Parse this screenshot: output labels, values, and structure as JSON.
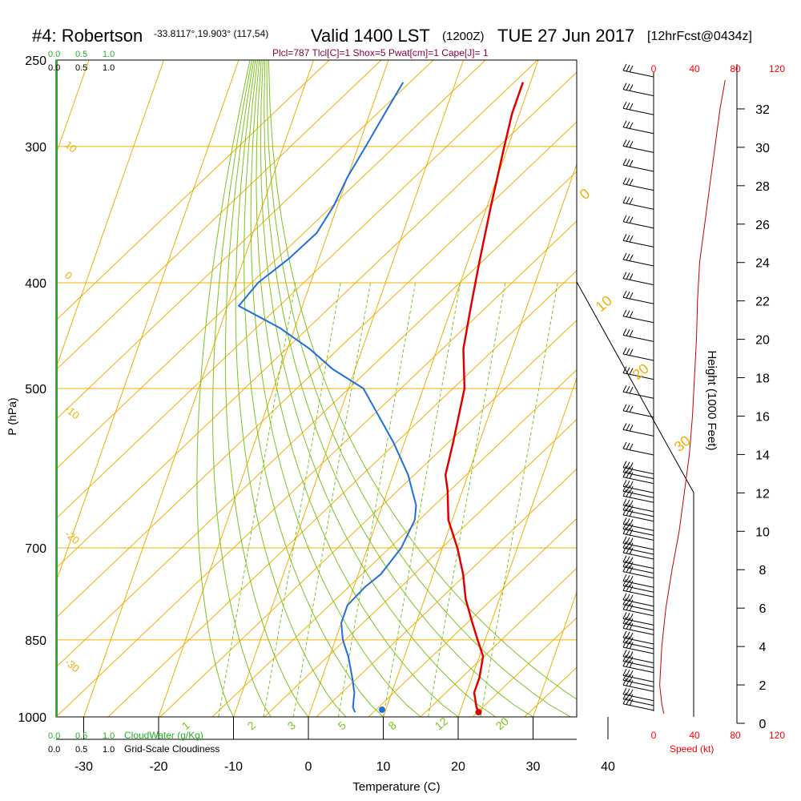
{
  "header": {
    "station": "#4: Robertson",
    "coords": "-33.8117°,19.903° (117,54)",
    "valid": "Valid 1400 LST",
    "utc": "(1200Z)",
    "date": "TUE 27 Jun 2017",
    "forecast": "[12hrFcst@0434z]",
    "params": "Plcl=787 Tlcl[C]=1 Shox=5 Pwat[cm]=1 Cape[J]= 1"
  },
  "cloud_labels": {
    "top_green": [
      "0.0",
      "0.5",
      "1.0"
    ],
    "top_black": [
      "0.0",
      "0.5",
      "1.0"
    ],
    "bottom_green": [
      "0.0",
      "0.5",
      "1.0"
    ],
    "bottom_green_title": "CloudWater (g/Kg)",
    "bottom_black": [
      "0.0",
      "0.5",
      "1.0"
    ],
    "bottom_black_title": "Grid-Scale Cloudiness"
  },
  "speed_axis": {
    "top_ticks": [
      "0",
      "40",
      "80",
      "120"
    ],
    "bottom_ticks": [
      "0",
      "40",
      "80",
      "120"
    ],
    "title": "Speed (kt)",
    "color": "#ff0000"
  },
  "isotherm_labels": [
    "10",
    "0",
    "-10",
    "-20",
    "-30"
  ],
  "right_labels": [
    "0",
    "10",
    "20",
    "30"
  ],
  "mixing_labels": [
    "1",
    "2",
    "3",
    "5",
    "8",
    "12",
    "20"
  ],
  "chart_data": {
    "type": "line",
    "xlabel": "Temperature (C)",
    "ylabel": "P (hPa)",
    "y2label": "Height (1000 Feet)",
    "x_ticks": [
      "-30",
      "-20",
      "-10",
      "0",
      "10",
      "20",
      "30",
      "40"
    ],
    "p_ticks": [
      "250",
      "300",
      "400",
      "500",
      "700",
      "850",
      "1000"
    ],
    "height_ticks": [
      "0",
      "2",
      "4",
      "6",
      "8",
      "10",
      "12",
      "14",
      "16",
      "18",
      "20",
      "22",
      "24",
      "26",
      "28",
      "30",
      "32"
    ],
    "xlim": [
      -30,
      40
    ],
    "plim": [
      1000,
      250
    ],
    "series": [
      {
        "color": "#e00000",
        "points": [
          [
            -1,
            262
          ],
          [
            -1,
            280
          ],
          [
            -0.5,
            300
          ],
          [
            0.5,
            340
          ],
          [
            1.5,
            380
          ],
          [
            2.5,
            420
          ],
          [
            3.5,
            460
          ],
          [
            5.5,
            500
          ],
          [
            6.5,
            560
          ],
          [
            7,
            600
          ],
          [
            8,
            620
          ],
          [
            9.5,
            660
          ],
          [
            12,
            700
          ],
          [
            14,
            740
          ],
          [
            15.5,
            780
          ],
          [
            17.5,
            820
          ],
          [
            19,
            850
          ],
          [
            20.5,
            880
          ],
          [
            21,
            920
          ],
          [
            21,
            950
          ],
          [
            22,
            980
          ],
          [
            22.5,
            990
          ]
        ]
      },
      {
        "color": "#1f6fdc",
        "points": [
          [
            -17,
            262
          ],
          [
            -18,
            280
          ],
          [
            -19,
            300
          ],
          [
            -20,
            320
          ],
          [
            -20.5,
            340
          ],
          [
            -21.5,
            360
          ],
          [
            -24,
            380
          ],
          [
            -27,
            400
          ],
          [
            -28.5,
            420
          ],
          [
            -22,
            440
          ],
          [
            -17,
            460
          ],
          [
            -13,
            480
          ],
          [
            -8,
            500
          ],
          [
            -1.5,
            560
          ],
          [
            2,
            600
          ],
          [
            4.5,
            640
          ],
          [
            5,
            660
          ],
          [
            4.5,
            700
          ],
          [
            3,
            740
          ],
          [
            1.5,
            760
          ],
          [
            0,
            790
          ],
          [
            0,
            820
          ],
          [
            1,
            850
          ],
          [
            2.5,
            880
          ],
          [
            4,
            920
          ],
          [
            5,
            950
          ],
          [
            5.5,
            980
          ],
          [
            6,
            990
          ]
        ]
      }
    ],
    "surface_markers": [
      {
        "temp": 22.5,
        "p": 990,
        "color": "#e00000"
      },
      {
        "temp": 9.5,
        "p": 985,
        "color": "#1f6fdc"
      }
    ],
    "wind_speed_profile": [
      [
        10,
        0.5
      ],
      [
        8,
        1
      ],
      [
        6,
        2
      ],
      [
        8,
        4
      ],
      [
        12,
        6
      ],
      [
        18,
        8
      ],
      [
        25,
        10
      ],
      [
        30,
        12
      ],
      [
        35,
        14
      ],
      [
        38,
        16
      ],
      [
        40,
        18
      ],
      [
        42,
        20
      ],
      [
        43,
        22
      ],
      [
        45,
        24
      ],
      [
        50,
        26
      ],
      [
        55,
        28
      ],
      [
        60,
        30
      ],
      [
        65,
        32
      ],
      [
        70,
        33.5
      ]
    ]
  }
}
